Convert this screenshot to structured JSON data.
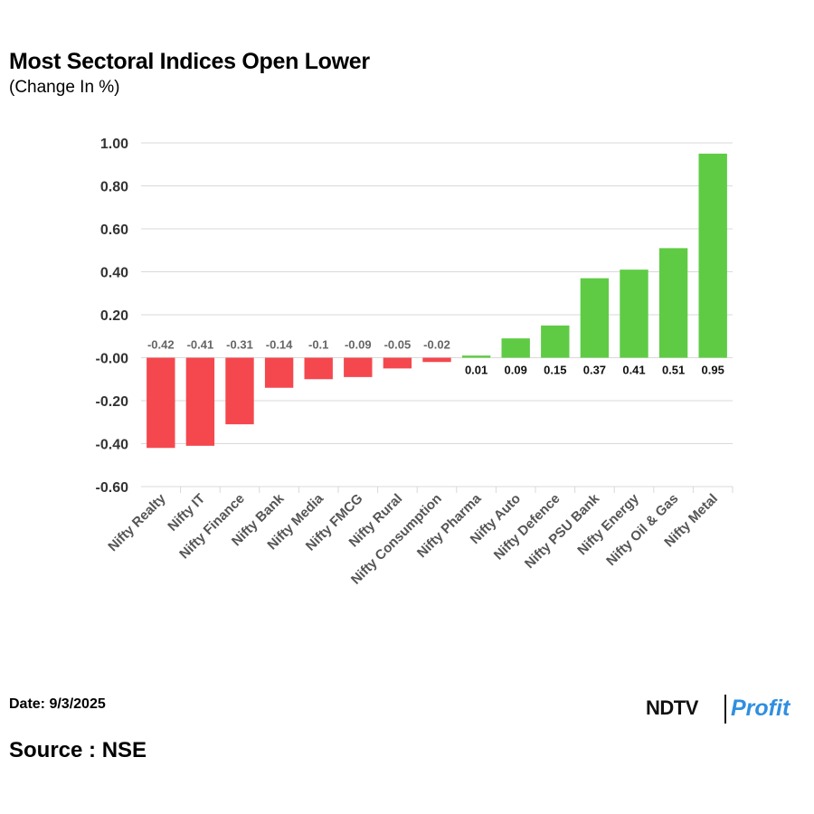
{
  "header": {
    "title": "Most Sectoral Indices Open Lower",
    "subtitle": "(Change In %)"
  },
  "footer": {
    "date": "Date: 9/3/2025",
    "source": "Source : NSE",
    "brand_ndtv": "NDTV",
    "brand_profit": "Profit"
  },
  "colors": {
    "negative": "#f4484e",
    "positive": "#5fcb45",
    "grid": "#d9d9d9",
    "label": "#666666"
  },
  "chart_data": {
    "type": "bar",
    "categories": [
      "Nifty Realty",
      "Nifty IT",
      "Nifty Finance",
      "Nifty Bank",
      "Nifty Media",
      "Nifty FMCG",
      "Nifty Rural",
      "Nifty Consumption",
      "Nifty Pharma",
      "Nifty Auto",
      "Nifty Defence",
      "Nifty PSU Bank",
      "Nifty Energy",
      "Nifty Oil & Gas",
      "Nifty Metal"
    ],
    "values": [
      -0.42,
      -0.41,
      -0.31,
      -0.14,
      -0.1,
      -0.09,
      -0.05,
      -0.02,
      0.01,
      0.09,
      0.15,
      0.37,
      0.41,
      0.51,
      0.95
    ],
    "data_labels": [
      "-0.42",
      "-0.41",
      "-0.31",
      "-0.14",
      "-0.1",
      "-0.09",
      "-0.05",
      "-0.02",
      "0.01",
      "0.09",
      "0.15",
      "0.37",
      "0.41",
      "0.51",
      "0.95"
    ],
    "ylim": [
      -0.6,
      1.0
    ],
    "yticks": [
      1.0,
      0.8,
      0.6,
      0.4,
      0.2,
      0.0,
      -0.2,
      -0.4,
      -0.6
    ],
    "ytick_labels": [
      "1.00",
      "0.80",
      "0.60",
      "0.40",
      "0.20",
      "-0.00",
      "-0.20",
      "-0.40",
      "-0.60"
    ],
    "grid": true,
    "legend": "none"
  }
}
